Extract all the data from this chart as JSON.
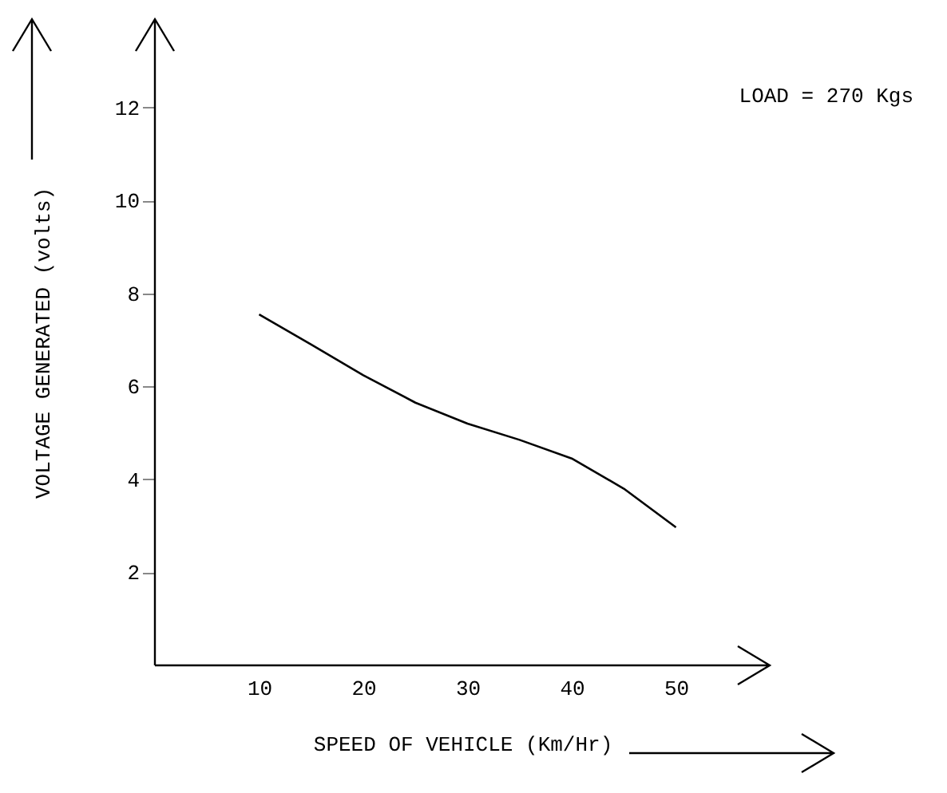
{
  "chart_data": {
    "type": "line",
    "xlabel": "SPEED OF VEHICLE (Km/Hr)",
    "ylabel": "VOLTAGE GENERATED (volts)",
    "annotations": [
      "LOAD = 270 Kgs"
    ],
    "x": [
      10,
      15,
      20,
      25,
      30,
      35,
      40,
      45,
      50
    ],
    "series": [
      {
        "color": "#000000",
        "values": [
          7.55,
          6.9,
          6.24,
          5.65,
          5.2,
          4.85,
          4.45,
          3.8,
          2.97
        ]
      }
    ],
    "xlim": [
      0,
      59
    ],
    "ylim": [
      0,
      13.9
    ],
    "xticks": [
      10,
      20,
      30,
      40,
      50
    ],
    "yticks": [
      2,
      4,
      6,
      8,
      10,
      12
    ],
    "grid": false,
    "marker": "none",
    "line_style": "solid"
  }
}
